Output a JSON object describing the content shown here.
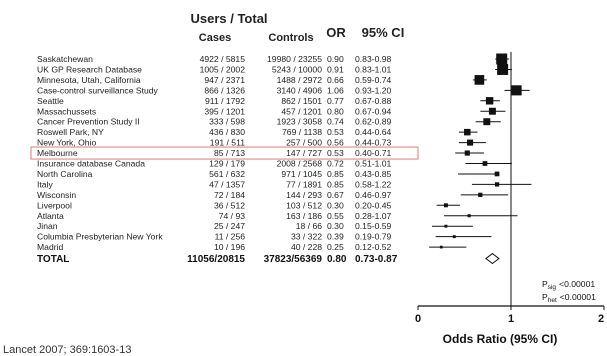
{
  "header": {
    "group_title": "Users / Total",
    "col_cases": "Cases",
    "col_controls": "Controls",
    "col_or": "OR",
    "col_ci": "95% CI"
  },
  "chart_data": {
    "type": "forest",
    "xlabel": "Odds Ratio (95% CI)",
    "xlim": [
      0,
      2
    ],
    "xticks": [
      "0",
      "1",
      "2"
    ],
    "reference_line": 1,
    "highlighted_study": "Melbourne",
    "studies": [
      {
        "name": "Saskatchewan",
        "cases": "4922 / 5815",
        "controls": "19980 / 23255",
        "or_label": "0.90",
        "ci_label": "0.83-0.98",
        "or": 0.9,
        "lo": 0.83,
        "hi": 0.98,
        "weight": 1.0
      },
      {
        "name": "UK GP Research Database",
        "cases": "1005 / 2002",
        "controls": "5243 / 10000",
        "or_label": "0.91",
        "ci_label": "0.83-1.01",
        "or": 0.91,
        "lo": 0.83,
        "hi": 1.01,
        "weight": 1.0
      },
      {
        "name": "Minnesota, Utah, California",
        "cases": "947 / 2371",
        "1488 / 2972": "",
        "controls": "1488 / 2972",
        "or_label": "0.66",
        "ci_label": "0.59-0.74",
        "or": 0.66,
        "lo": 0.59,
        "hi": 0.74,
        "weight": 0.85
      },
      {
        "name": "Case-control surveillance Study",
        "cases": "866 / 1326",
        "controls": "3140 / 4906",
        "or_label": "1.06",
        "ci_label": "0.93-1.20",
        "or": 1.06,
        "lo": 0.93,
        "hi": 1.2,
        "weight": 0.9
      },
      {
        "name": "Seattle",
        "cases": "911 / 1792",
        "controls": "862 / 1501",
        "or_label": "0.77",
        "ci_label": "0.67-0.88",
        "or": 0.77,
        "lo": 0.67,
        "hi": 0.88,
        "weight": 0.6
      },
      {
        "name": "Massachussets",
        "cases": "395 / 1201",
        "controls": "457 / 1201",
        "or_label": "0.80",
        "ci_label": "0.67-0.94",
        "or": 0.8,
        "lo": 0.67,
        "hi": 0.94,
        "weight": 0.55
      },
      {
        "name": "Cancer Prevention Study II",
        "cases": "333 / 598",
        "controls": "1923 / 3058",
        "or_label": "0.74",
        "ci_label": "0.62-0.89",
        "or": 0.74,
        "lo": 0.62,
        "hi": 0.89,
        "weight": 0.55
      },
      {
        "name": "Roswell Park, NY",
        "cases": "436 / 830",
        "controls": "769 / 1138",
        "or_label": "0.53",
        "ci_label": "0.44-0.64",
        "or": 0.53,
        "lo": 0.44,
        "hi": 0.64,
        "weight": 0.5
      },
      {
        "name": "New York, Ohio",
        "cases": "191 / 511",
        "controls": "257 / 500",
        "or_label": "0.56",
        "ci_label": "0.44-0.73",
        "or": 0.56,
        "lo": 0.44,
        "hi": 0.73,
        "weight": 0.45
      },
      {
        "name": "Melbourne",
        "cases": "85 / 713",
        "controls": "147 / 727",
        "or_label": "0.53",
        "ci_label": "0.40-0.71",
        "or": 0.53,
        "lo": 0.4,
        "hi": 0.71,
        "weight": 0.35
      },
      {
        "name": "Insurance database Canada",
        "cases": "129 / 179",
        "controls": "2008 / 2568",
        "or_label": "0.72",
        "ci_label": "0.51-1.01",
        "or": 0.72,
        "lo": 0.51,
        "hi": 1.01,
        "weight": 0.3
      },
      {
        "name": "North Carolina",
        "cases": "561 / 632",
        "controls": "971 / 1045",
        "or_label": "0.85",
        "ci_label": "0.43-0.85",
        "or": 0.85,
        "lo": 0.43,
        "hi": 0.85,
        "weight": 0.3
      },
      {
        "name": "Italy",
        "cases": "47 / 1357",
        "controls": "77 / 1891",
        "or_label": "0.85",
        "ci_label": "0.58-1.22",
        "or": 0.85,
        "lo": 0.58,
        "hi": 1.22,
        "weight": 0.25
      },
      {
        "name": "Wisconsin",
        "cases": "72 / 184",
        "controls": "144 / 293",
        "or_label": "0.67",
        "ci_label": "0.46-0.97",
        "or": 0.67,
        "lo": 0.46,
        "hi": 0.97,
        "weight": 0.25
      },
      {
        "name": "Liverpool",
        "cases": "36 / 512",
        "controls": "103 / 512",
        "or_label": "0.30",
        "ci_label": "0.20-0.45",
        "or": 0.3,
        "lo": 0.2,
        "hi": 0.45,
        "weight": 0.22
      },
      {
        "name": "Atlanta",
        "cases": "74 / 93",
        "controls": "163 / 186",
        "or_label": "0.55",
        "ci_label": "0.28-1.07",
        "or": 0.55,
        "lo": 0.28,
        "hi": 1.07,
        "weight": 0.12
      },
      {
        "name": "Jinan",
        "cases": "25 / 247",
        "controls": "18 / 66",
        "or_label": "0.30",
        "ci_label": "0.15-0.59",
        "or": 0.3,
        "lo": 0.15,
        "hi": 0.59,
        "weight": 0.1
      },
      {
        "name": "Columbia Presbyterian New York",
        "cases": "11 / 256",
        "controls": "33 / 322",
        "or_label": "0.39",
        "ci_label": "0.19-0.79",
        "or": 0.39,
        "lo": 0.19,
        "hi": 0.79,
        "weight": 0.1
      },
      {
        "name": "Madrid",
        "cases": "10 / 196",
        "controls": "40 / 228",
        "or_label": "0.25",
        "ci_label": "0.12-0.52",
        "or": 0.25,
        "lo": 0.12,
        "hi": 0.52,
        "weight": 0.08
      }
    ],
    "total": {
      "name": "TOTAL",
      "cases": "11056/20815",
      "controls": "37823/56369",
      "or_label": "0.80",
      "ci_label": "0.73-0.87",
      "or": 0.8,
      "lo": 0.73,
      "hi": 0.87
    },
    "p_sig_label": "P",
    "p_sig_sub": "sig",
    "p_sig_value": "<0.00001",
    "p_het_label": "P",
    "p_het_sub": "het",
    "p_het_value": "<0.00001"
  },
  "citation": "Lancet 2007; 369:1603-13"
}
